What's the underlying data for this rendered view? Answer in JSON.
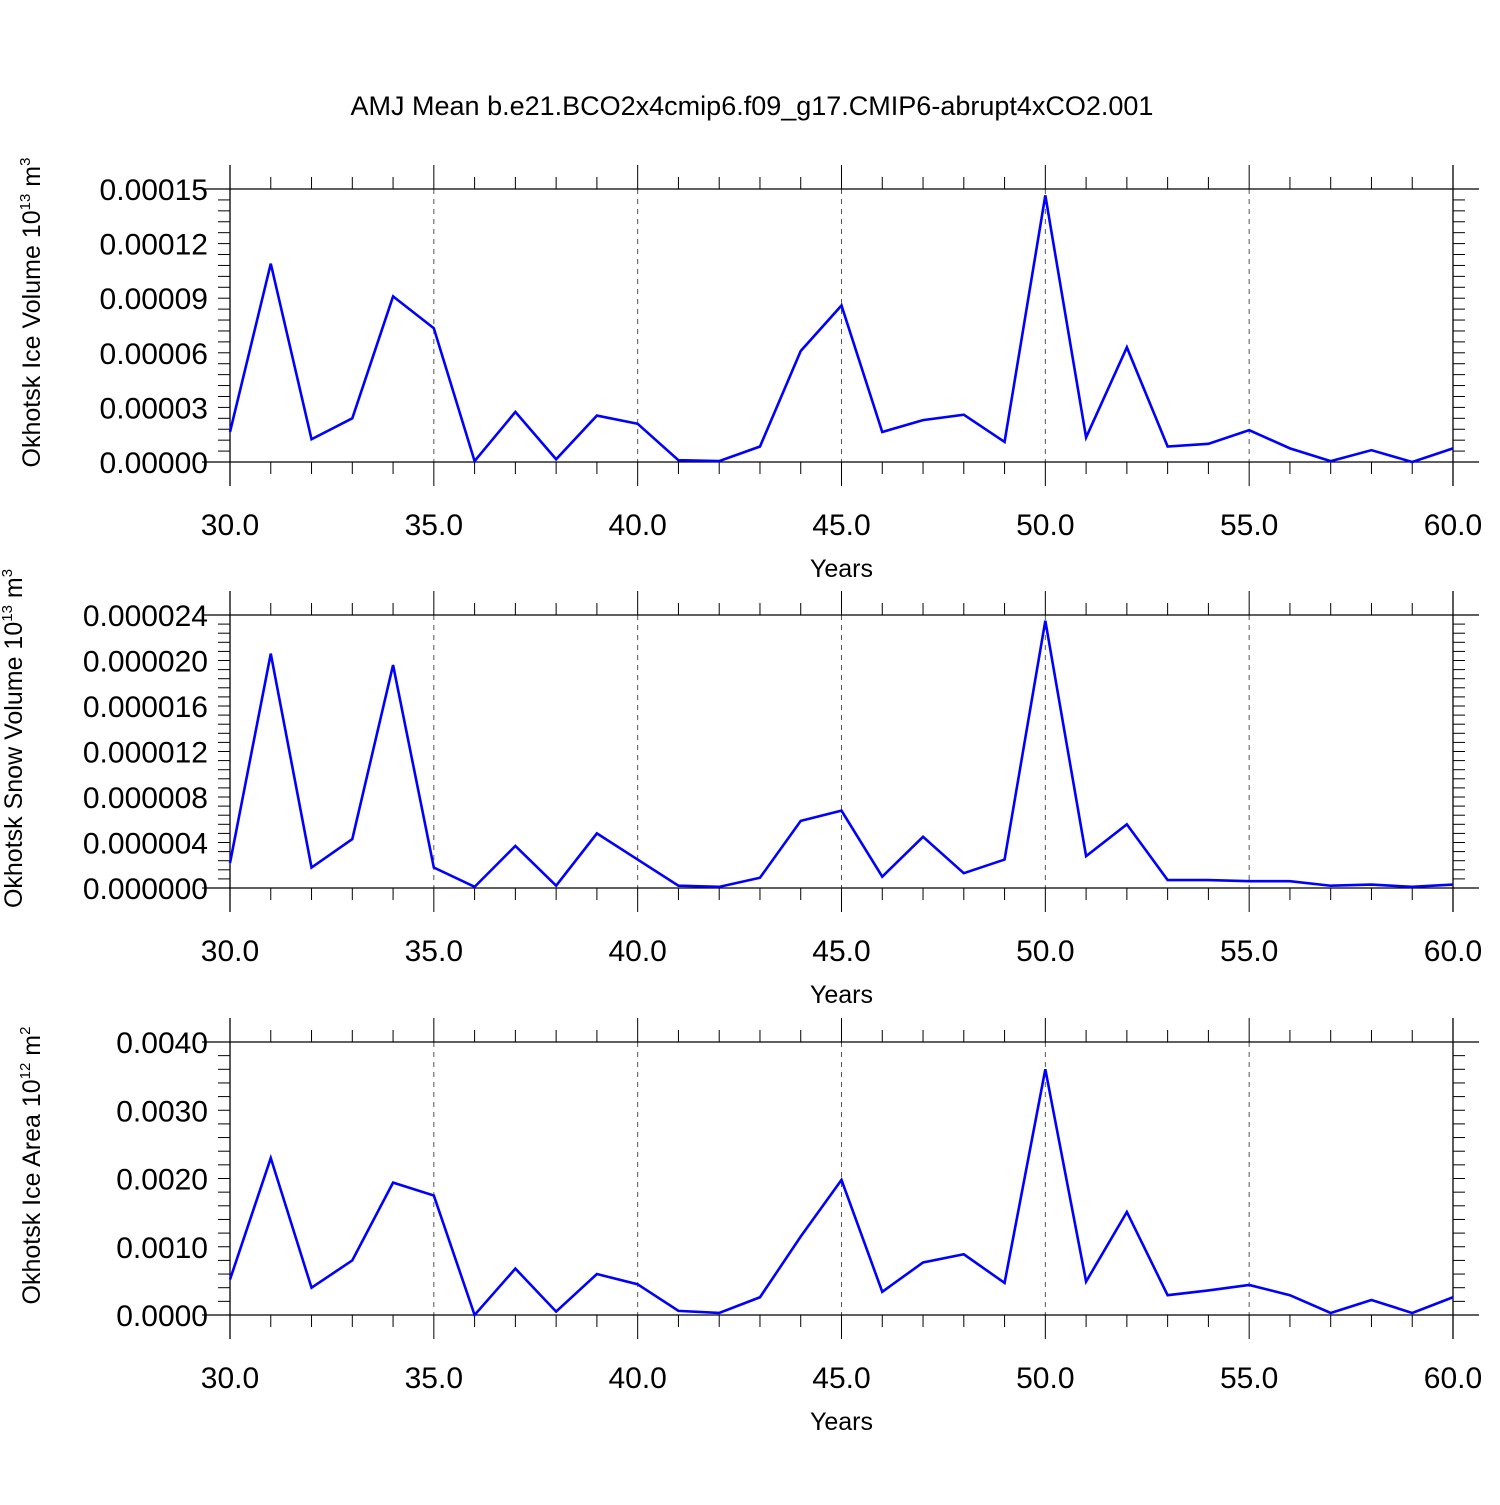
{
  "figure_title": "AMJ Mean b.e21.BCO2x4cmip6.f09_g17.CMIP6-abrupt4xCO2.001",
  "colors": {
    "line": "#0000ff",
    "axis": "#000000",
    "grid": "#555555"
  },
  "chart_data": [
    {
      "type": "line",
      "title": "",
      "ylabel_main": "Okhotsk Ice Volume 10",
      "ylabel_exp": "13",
      "ylabel_unit": " m",
      "ylabel_unit_exp": "3",
      "xlabel": "Years",
      "xlim": [
        30,
        60
      ],
      "ylim": [
        0,
        0.00015
      ],
      "x_ticks": [
        "30.0",
        "35.0",
        "40.0",
        "45.0",
        "50.0",
        "55.0",
        "60.0"
      ],
      "y_ticks": [
        "0.00000",
        "0.00003",
        "0.00006",
        "0.00009",
        "0.00012",
        "0.00015"
      ],
      "grid": "vertical dashed at major x ticks",
      "x": [
        30,
        31,
        32,
        33,
        34,
        35,
        36,
        37,
        38,
        39,
        40,
        41,
        42,
        43,
        44,
        45,
        46,
        47,
        48,
        49,
        50,
        51,
        52,
        53,
        54,
        55,
        56,
        57,
        58,
        59,
        60
      ],
      "series": [
        {
          "values": [
            1.65e-05,
            0.000109,
            1.25e-05,
            2.4e-05,
            9.1e-05,
            7.35e-05,
            5e-07,
            2.75e-05,
            1.5e-06,
            2.55e-05,
            2.1e-05,
            1e-06,
            5e-07,
            8.5e-06,
            6.1e-05,
            8.6e-05,
            1.65e-05,
            2.3e-05,
            2.6e-05,
            1.1e-05,
            0.0001465,
            1.35e-05,
            6.3e-05,
            8.5e-06,
            1e-05,
            1.75e-05,
            7.5e-06,
            5e-07,
            6.5e-06,
            0,
            7.5e-06
          ]
        }
      ]
    },
    {
      "type": "line",
      "title": "",
      "ylabel_main": "Okhotsk Snow Volume 10",
      "ylabel_exp": "13",
      "ylabel_unit": " m",
      "ylabel_unit_exp": "3",
      "xlabel": "Years",
      "xlim": [
        30,
        60
      ],
      "ylim": [
        0,
        2.4e-05
      ],
      "x_ticks": [
        "30.0",
        "35.0",
        "40.0",
        "45.0",
        "50.0",
        "55.0",
        "60.0"
      ],
      "y_ticks": [
        "0.000000",
        "0.000004",
        "0.000008",
        "0.000012",
        "0.000016",
        "0.000020",
        "0.000024"
      ],
      "grid": "vertical dashed at major x ticks",
      "x": [
        30,
        31,
        32,
        33,
        34,
        35,
        36,
        37,
        38,
        39,
        40,
        41,
        42,
        43,
        44,
        45,
        46,
        47,
        48,
        49,
        50,
        51,
        52,
        53,
        54,
        55,
        56,
        57,
        58,
        59,
        60
      ],
      "series": [
        {
          "values": [
            2.2e-06,
            2.06e-05,
            1.8e-06,
            4.3e-06,
            1.96e-05,
            1.8e-06,
            1e-07,
            3.7e-06,
            2e-07,
            4.8e-06,
            2.5e-06,
            2e-07,
            1e-07,
            9e-07,
            5.9e-06,
            6.8e-06,
            1e-06,
            4.5e-06,
            1.3e-06,
            2.5e-06,
            2.35e-05,
            2.8e-06,
            5.6e-06,
            7e-07,
            7e-07,
            6e-07,
            6e-07,
            2e-07,
            3e-07,
            1e-07,
            3e-07
          ]
        }
      ]
    },
    {
      "type": "line",
      "title": "",
      "ylabel_main": "Okhotsk Ice Area 10",
      "ylabel_exp": "12",
      "ylabel_unit": " m",
      "ylabel_unit_exp": "2",
      "xlabel": "Years",
      "xlim": [
        30,
        60
      ],
      "ylim": [
        0,
        0.004
      ],
      "x_ticks": [
        "30.0",
        "35.0",
        "40.0",
        "45.0",
        "50.0",
        "55.0",
        "60.0"
      ],
      "y_ticks": [
        "0.0000",
        "0.0010",
        "0.0020",
        "0.0030",
        "0.0040"
      ],
      "grid": "vertical dashed at major x ticks",
      "x": [
        30,
        31,
        32,
        33,
        34,
        35,
        36,
        37,
        38,
        39,
        40,
        41,
        42,
        43,
        44,
        45,
        46,
        47,
        48,
        49,
        50,
        51,
        52,
        53,
        54,
        55,
        56,
        57,
        58,
        59,
        60
      ],
      "series": [
        {
          "values": [
            0.00052,
            0.0023,
            0.0004,
            0.0008,
            0.00194,
            0.00175,
            0,
            0.00068,
            5e-05,
            0.0006,
            0.00045,
            6e-05,
            3e-05,
            0.00026,
            0.00115,
            0.00198,
            0.00034,
            0.00077,
            0.00089,
            0.00047,
            0.0036,
            0.00049,
            0.00151,
            0.00029,
            0.00036,
            0.00044,
            0.00029,
            3e-05,
            0.00022,
            3e-05,
            0.00026
          ]
        }
      ]
    }
  ]
}
